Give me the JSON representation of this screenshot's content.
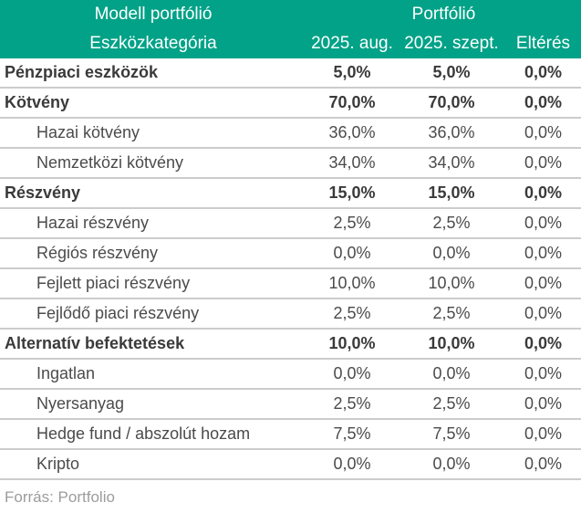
{
  "chart_data": {
    "type": "table",
    "header": {
      "group_left": "Modell portfólió",
      "group_right": "Portfólió",
      "columns": [
        "Eszközkategória",
        "2025. aug.",
        "2025. szept.",
        "Eltérés"
      ]
    },
    "rows": [
      {
        "label": "Pénzpiaci eszközök",
        "values": [
          "5,0%",
          "5,0%",
          "0,0%"
        ],
        "bold": true,
        "indent": false
      },
      {
        "label": "Kötvény",
        "values": [
          "70,0%",
          "70,0%",
          "0,0%"
        ],
        "bold": true,
        "indent": false
      },
      {
        "label": "Hazai kötvény",
        "values": [
          "36,0%",
          "36,0%",
          "0,0%"
        ],
        "bold": false,
        "indent": true
      },
      {
        "label": "Nemzetközi kötvény",
        "values": [
          "34,0%",
          "34,0%",
          "0,0%"
        ],
        "bold": false,
        "indent": true
      },
      {
        "label": "Részvény",
        "values": [
          "15,0%",
          "15,0%",
          "0,0%"
        ],
        "bold": true,
        "indent": false
      },
      {
        "label": "Hazai részvény",
        "values": [
          "2,5%",
          "2,5%",
          "0,0%"
        ],
        "bold": false,
        "indent": true
      },
      {
        "label": "Régiós részvény",
        "values": [
          "0,0%",
          "0,0%",
          "0,0%"
        ],
        "bold": false,
        "indent": true
      },
      {
        "label": "Fejlett piaci részvény",
        "values": [
          "10,0%",
          "10,0%",
          "0,0%"
        ],
        "bold": false,
        "indent": true
      },
      {
        "label": "Fejlődő piaci részvény",
        "values": [
          "2,5%",
          "2,5%",
          "0,0%"
        ],
        "bold": false,
        "indent": true
      },
      {
        "label": "Alternatív befektetések",
        "values": [
          "10,0%",
          "10,0%",
          "0,0%"
        ],
        "bold": true,
        "indent": false
      },
      {
        "label": "Ingatlan",
        "values": [
          "0,0%",
          "0,0%",
          "0,0%"
        ],
        "bold": false,
        "indent": true
      },
      {
        "label": "Nyersanyag",
        "values": [
          "2,5%",
          "2,5%",
          "0,0%"
        ],
        "bold": false,
        "indent": true
      },
      {
        "label": "Hedge fund / abszolút hozam",
        "values": [
          "7,5%",
          "7,5%",
          "0,0%"
        ],
        "bold": false,
        "indent": true
      },
      {
        "label": "Kripto",
        "values": [
          "0,0%",
          "0,0%",
          "0,0%"
        ],
        "bold": false,
        "indent": true
      }
    ],
    "source": "Forrás: Portfolio"
  },
  "colors": {
    "header_bg": "#01a287",
    "header_text": "#ffffff",
    "row_text_bold": "#3a3a3a",
    "row_text": "#4b4b4b",
    "divider": "#cccccc",
    "source_text": "#9c9c9c",
    "background": "#ffffff"
  }
}
